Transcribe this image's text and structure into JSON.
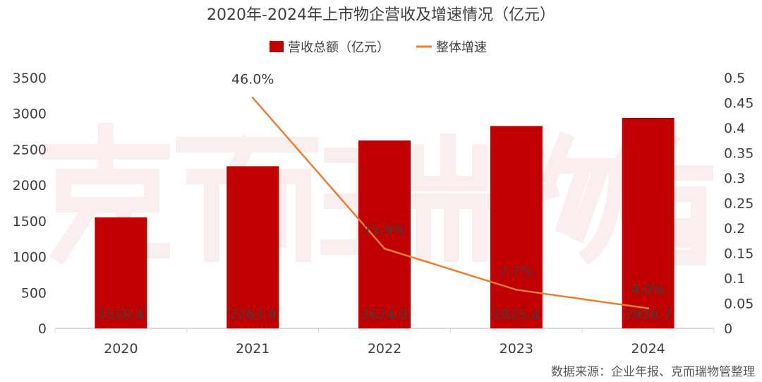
{
  "chart_data": {
    "type": "bar+line",
    "title": "2020年-2024年上市物企营收及增速情况（亿元）",
    "categories": [
      "2020",
      "2021",
      "2022",
      "2023",
      "2024"
    ],
    "series": [
      {
        "name": "营收总额（亿元）",
        "type": "bar",
        "axis": "left",
        "color": "#c00000",
        "values": [
          1550.4,
          2263.9,
          2624.0,
          2825.4,
          2938.7
        ],
        "labels": [
          "1550.4",
          "2263.9",
          "2624.0",
          "2825.4",
          "2938.7"
        ]
      },
      {
        "name": "整体增速",
        "type": "line",
        "axis": "right",
        "color": "#ed7d31",
        "values": [
          null,
          0.46,
          0.159,
          0.077,
          0.04
        ],
        "labels": [
          "",
          "46.0%",
          "15.9%",
          "7.7%",
          "4.0%"
        ]
      }
    ],
    "y_left": {
      "min": 0,
      "max": 3500,
      "ticks": [
        "0",
        "500",
        "1000",
        "1500",
        "2000",
        "2500",
        "3000",
        "3500"
      ]
    },
    "y_right": {
      "min": 0,
      "max": 0.5,
      "ticks": [
        "0",
        "0.05",
        "0.1",
        "0.15",
        "0.2",
        "0.25",
        "0.3",
        "0.35",
        "0.4",
        "0.45",
        "0.5"
      ]
    },
    "legend": "top",
    "grid": false
  },
  "watermark": "克而瑞物管",
  "source": "数据来源：企业年报、克而瑞物管整理"
}
